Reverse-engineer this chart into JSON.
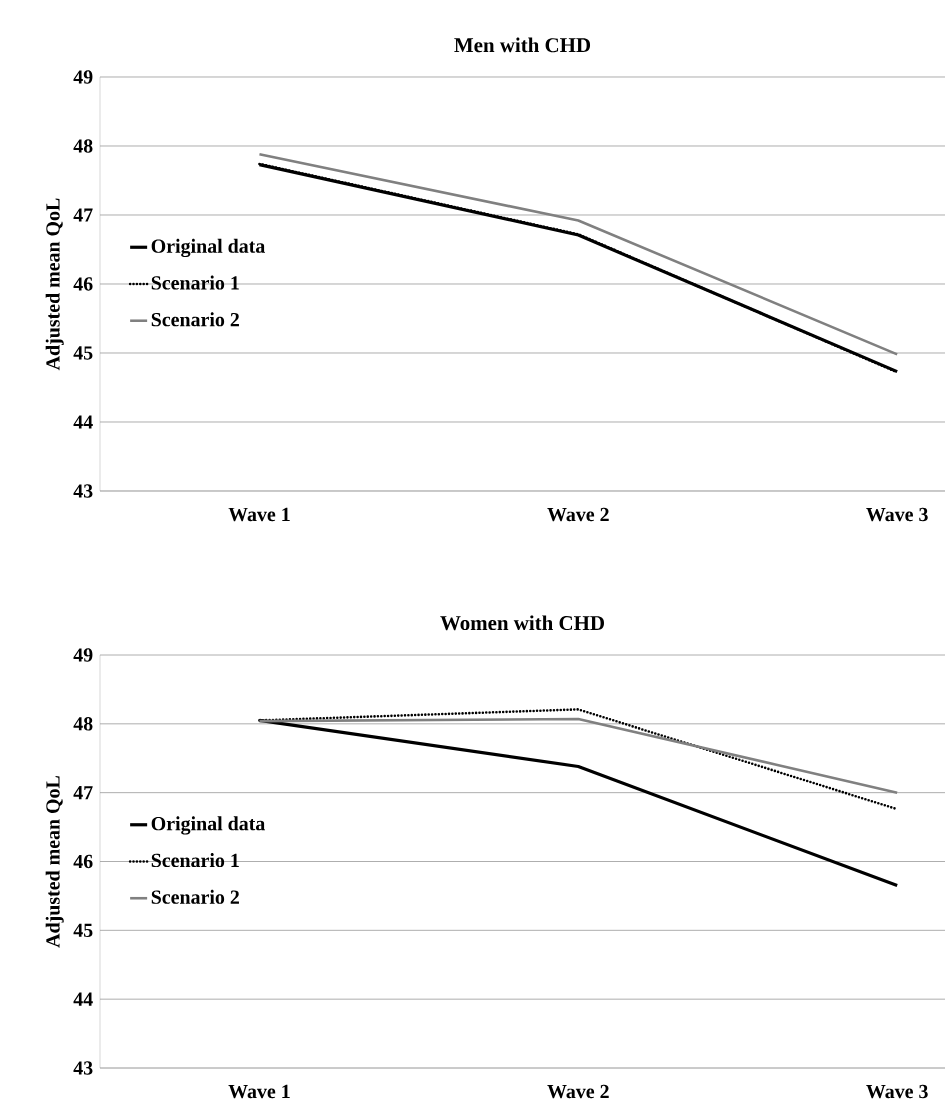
{
  "chart_data": [
    {
      "type": "line",
      "title": "Men  with CHD",
      "ylabel": "Adjusted mean QoL",
      "categories": [
        "Wave 1",
        "Wave 2",
        "Wave 3"
      ],
      "ylim": [
        43,
        49
      ],
      "yticks": [
        43,
        44,
        45,
        46,
        47,
        48,
        49
      ],
      "grid": "y",
      "legend": "left",
      "series": [
        {
          "name": "Original data",
          "color": "#000000",
          "line_style": "solid",
          "values": [
            47.73,
            46.71,
            44.73
          ]
        },
        {
          "name": "Scenario 1",
          "color": "#000000",
          "line_style": "dotted",
          "values": [
            47.74,
            46.72,
            44.72
          ]
        },
        {
          "name": "Scenario 2",
          "color": "#808080",
          "line_style": "solid",
          "values": [
            47.88,
            46.92,
            44.98
          ]
        }
      ]
    },
    {
      "type": "line",
      "title": "Women with CHD",
      "ylabel": "Adjusted mean QoL",
      "categories": [
        "Wave 1",
        "Wave 2",
        "Wave 3"
      ],
      "ylim": [
        43,
        49
      ],
      "yticks": [
        43,
        44,
        45,
        46,
        47,
        48,
        49
      ],
      "grid": "y",
      "legend": "left",
      "series": [
        {
          "name": "Original data",
          "color": "#000000",
          "line_style": "solid",
          "values": [
            48.05,
            47.38,
            45.65
          ]
        },
        {
          "name": "Scenario 1",
          "color": "#000000",
          "line_style": "dotted",
          "values": [
            48.05,
            48.21,
            46.76
          ]
        },
        {
          "name": "Scenario 2",
          "color": "#808080",
          "line_style": "solid",
          "values": [
            48.04,
            48.07,
            47.0
          ]
        }
      ]
    }
  ]
}
